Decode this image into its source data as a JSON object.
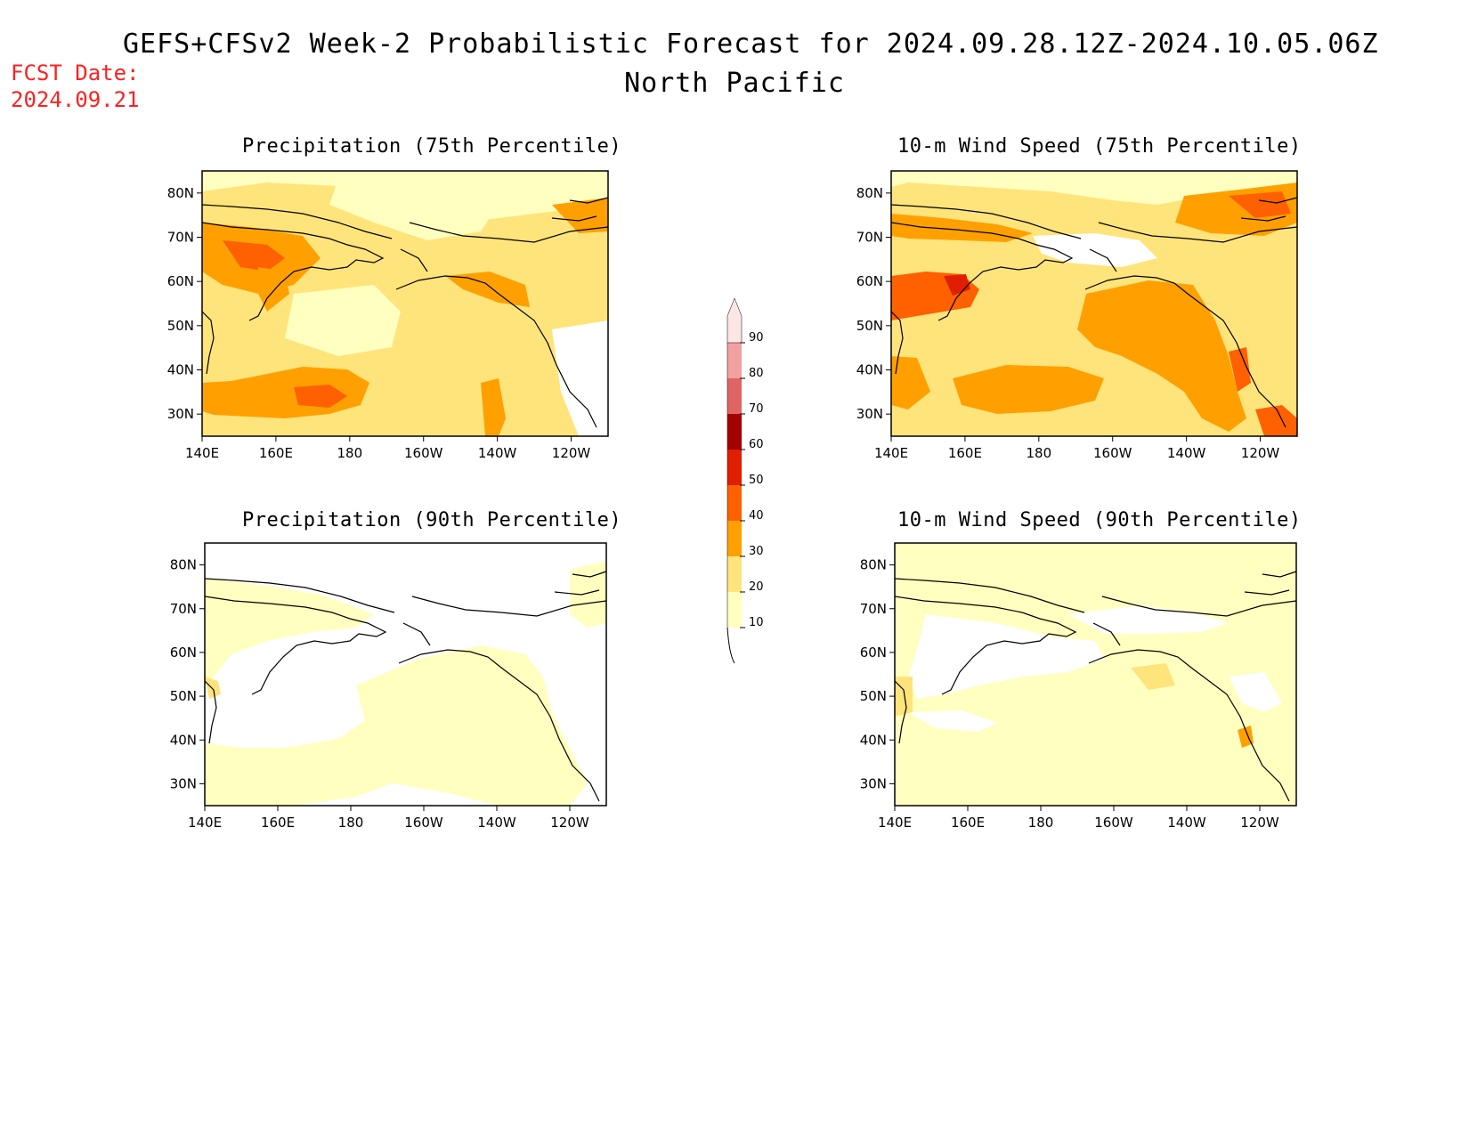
{
  "header": {
    "title": "GEFS+CFSv2 Week-2 Probabilistic Forecast for 2024.09.28.12Z-2024.10.05.06Z",
    "region": "North Pacific",
    "fcst_label": "FCST Date:",
    "fcst_date": "2024.09.21"
  },
  "axes": {
    "lat_labels": [
      "30N",
      "40N",
      "50N",
      "60N",
      "70N",
      "80N"
    ],
    "lat_values": [
      30,
      40,
      50,
      60,
      70,
      80
    ],
    "lon_labels": [
      "140E",
      "160E",
      "180",
      "160W",
      "140W",
      "120W"
    ],
    "lon_values": [
      140,
      160,
      180,
      200,
      220,
      240
    ],
    "lat_range": [
      25,
      85
    ],
    "lon_range": [
      140,
      250
    ]
  },
  "colorbar": {
    "levels": [
      "10",
      "20",
      "30",
      "40",
      "50",
      "60",
      "70",
      "80",
      "90"
    ],
    "colors": [
      "#ffffc0",
      "#ffe47c",
      "#ffa000",
      "#ff6000",
      "#e01e00",
      "#a50000",
      "#e06464",
      "#f2a0a0",
      "#ffe6e6"
    ]
  },
  "panels": [
    {
      "id": "precip-75",
      "title": "Precipitation (75th Percentile)",
      "variable": "precipitation",
      "percentile": "75th"
    },
    {
      "id": "wind-75",
      "title": "10-m Wind Speed (75th Percentile)",
      "variable": "wind",
      "percentile": "75th"
    },
    {
      "id": "precip-90",
      "title": "Precipitation (90th Percentile)",
      "variable": "precipitation",
      "percentile": "90th"
    },
    {
      "id": "wind-90",
      "title": "10-m Wind Speed (90th Percentile)",
      "variable": "wind",
      "percentile": "90th"
    }
  ]
}
